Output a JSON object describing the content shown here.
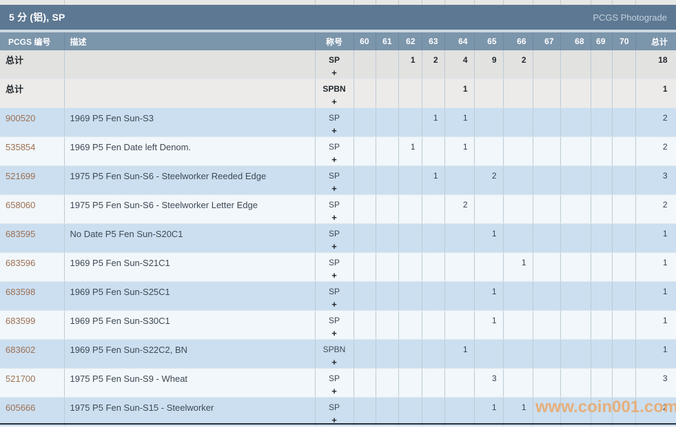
{
  "page": {
    "title": "5 分 (铝), SP",
    "photograde_link": "PCGS Photograde",
    "watermark": "www.coin001.com"
  },
  "colors": {
    "titlebar_bg": "#5d7892",
    "header_bg": "#7b95ab",
    "row_blue": "#cbdff0",
    "row_light": "#f1f7fa",
    "row_gray": "#e2e2e0",
    "pcgs_link": "#9e6f52",
    "watermark": "#e9ab72"
  },
  "table": {
    "headers": {
      "pcgs": "PCGS 编号",
      "description": "描述",
      "designation": "称号",
      "grades": [
        "60",
        "61",
        "62",
        "63",
        "64",
        "65",
        "66",
        "67",
        "68",
        "69",
        "70"
      ],
      "total": "总计"
    },
    "rows": [
      {
        "type": "total",
        "pcgs": "总计",
        "description": "",
        "designation": "SP",
        "plus": "+",
        "grades": [
          "",
          "",
          "1",
          "2",
          "4",
          "9",
          "2",
          "",
          "",
          "",
          ""
        ],
        "total": "18"
      },
      {
        "type": "total",
        "pcgs": "总计",
        "description": "",
        "designation": "SPBN",
        "plus": "+",
        "grades": [
          "",
          "",
          "",
          "",
          "1",
          "",
          "",
          "",
          "",
          "",
          ""
        ],
        "total": "1"
      },
      {
        "type": "data",
        "pcgs": "900520",
        "description": "1969 P5 Fen Sun-S3",
        "designation": "SP",
        "plus": "+",
        "grades": [
          "",
          "",
          "",
          "1",
          "1",
          "",
          "",
          "",
          "",
          "",
          ""
        ],
        "total": "2"
      },
      {
        "type": "data",
        "pcgs": "535854",
        "description": "1969 P5 Fen Date left Denom.",
        "designation": "SP",
        "plus": "+",
        "grades": [
          "",
          "",
          "1",
          "",
          "1",
          "",
          "",
          "",
          "",
          "",
          ""
        ],
        "total": "2"
      },
      {
        "type": "data",
        "pcgs": "521699",
        "description": "1975 P5 Fen Sun-S6 - Steelworker Reeded Edge",
        "designation": "SP",
        "plus": "+",
        "grades": [
          "",
          "",
          "",
          "1",
          "",
          "2",
          "",
          "",
          "",
          "",
          ""
        ],
        "total": "3"
      },
      {
        "type": "data",
        "pcgs": "658060",
        "description": "1975 P5 Fen Sun-S6 - Steelworker Letter Edge",
        "designation": "SP",
        "plus": "+",
        "grades": [
          "",
          "",
          "",
          "",
          "2",
          "",
          "",
          "",
          "",
          "",
          ""
        ],
        "total": "2"
      },
      {
        "type": "data",
        "pcgs": "683595",
        "description": "No Date P5 Fen Sun-S20C1",
        "designation": "SP",
        "plus": "+",
        "grades": [
          "",
          "",
          "",
          "",
          "",
          "1",
          "",
          "",
          "",
          "",
          ""
        ],
        "total": "1"
      },
      {
        "type": "data",
        "pcgs": "683596",
        "description": "1969 P5 Fen Sun-S21C1",
        "designation": "SP",
        "plus": "+",
        "grades": [
          "",
          "",
          "",
          "",
          "",
          "",
          "1",
          "",
          "",
          "",
          ""
        ],
        "total": "1"
      },
      {
        "type": "data",
        "pcgs": "683598",
        "description": "1969 P5 Fen Sun-S25C1",
        "designation": "SP",
        "plus": "+",
        "grades": [
          "",
          "",
          "",
          "",
          "",
          "1",
          "",
          "",
          "",
          "",
          ""
        ],
        "total": "1"
      },
      {
        "type": "data",
        "pcgs": "683599",
        "description": "1969 P5 Fen Sun-S30C1",
        "designation": "SP",
        "plus": "+",
        "grades": [
          "",
          "",
          "",
          "",
          "",
          "1",
          "",
          "",
          "",
          "",
          ""
        ],
        "total": "1"
      },
      {
        "type": "data",
        "pcgs": "683602",
        "description": "1969 P5 Fen Sun-S22C2, BN",
        "designation": "SPBN",
        "plus": "+",
        "grades": [
          "",
          "",
          "",
          "",
          "1",
          "",
          "",
          "",
          "",
          "",
          ""
        ],
        "total": "1"
      },
      {
        "type": "data",
        "pcgs": "521700",
        "description": "1975 P5 Fen Sun-S9 - Wheat",
        "designation": "SP",
        "plus": "+",
        "grades": [
          "",
          "",
          "",
          "",
          "",
          "3",
          "",
          "",
          "",
          "",
          ""
        ],
        "total": "3"
      },
      {
        "type": "data",
        "pcgs": "605666",
        "description": "1975 P5 Fen Sun-S15 - Steelworker",
        "designation": "SP",
        "plus": "+",
        "grades": [
          "",
          "",
          "",
          "",
          "",
          "1",
          "1",
          "",
          "",
          "",
          ""
        ],
        "total": "2"
      }
    ]
  }
}
